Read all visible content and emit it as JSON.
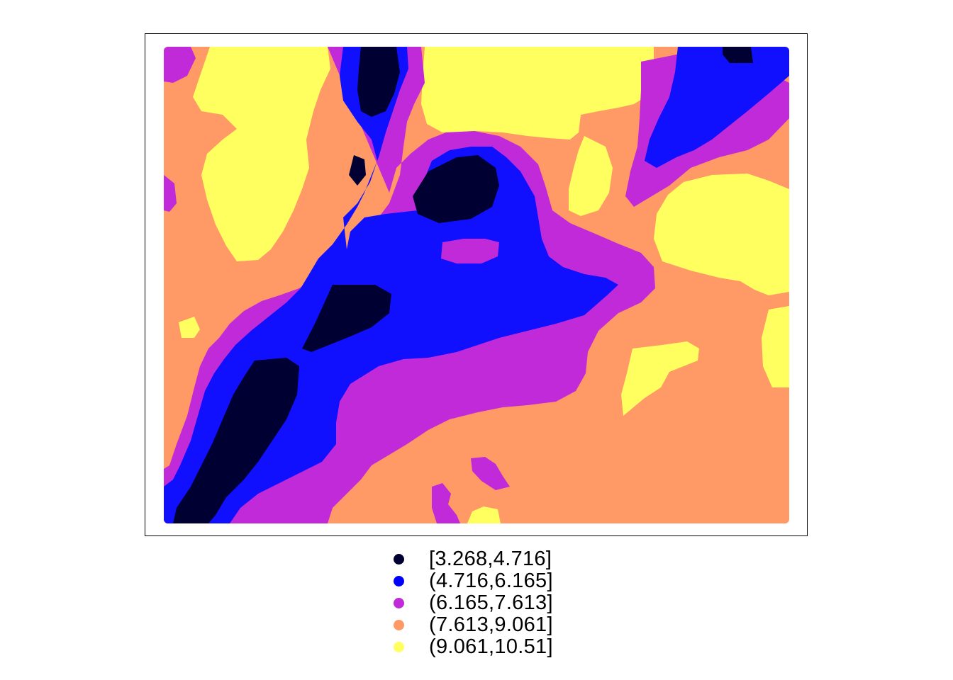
{
  "legend": {
    "items": [
      {
        "label": "[3.268,4.716]",
        "color": "#000033"
      },
      {
        "label": "(4.716,6.165]",
        "color": "#0000FF"
      },
      {
        "label": "(6.165,7.613]",
        "color": "#C02AD8"
      },
      {
        "label": "(7.613,9.061]",
        "color": "#FF9966"
      },
      {
        "label": "(9.061,10.51]",
        "color": "#FFFF60"
      }
    ]
  },
  "map": {
    "type": "gridded point map",
    "grid": false
  }
}
